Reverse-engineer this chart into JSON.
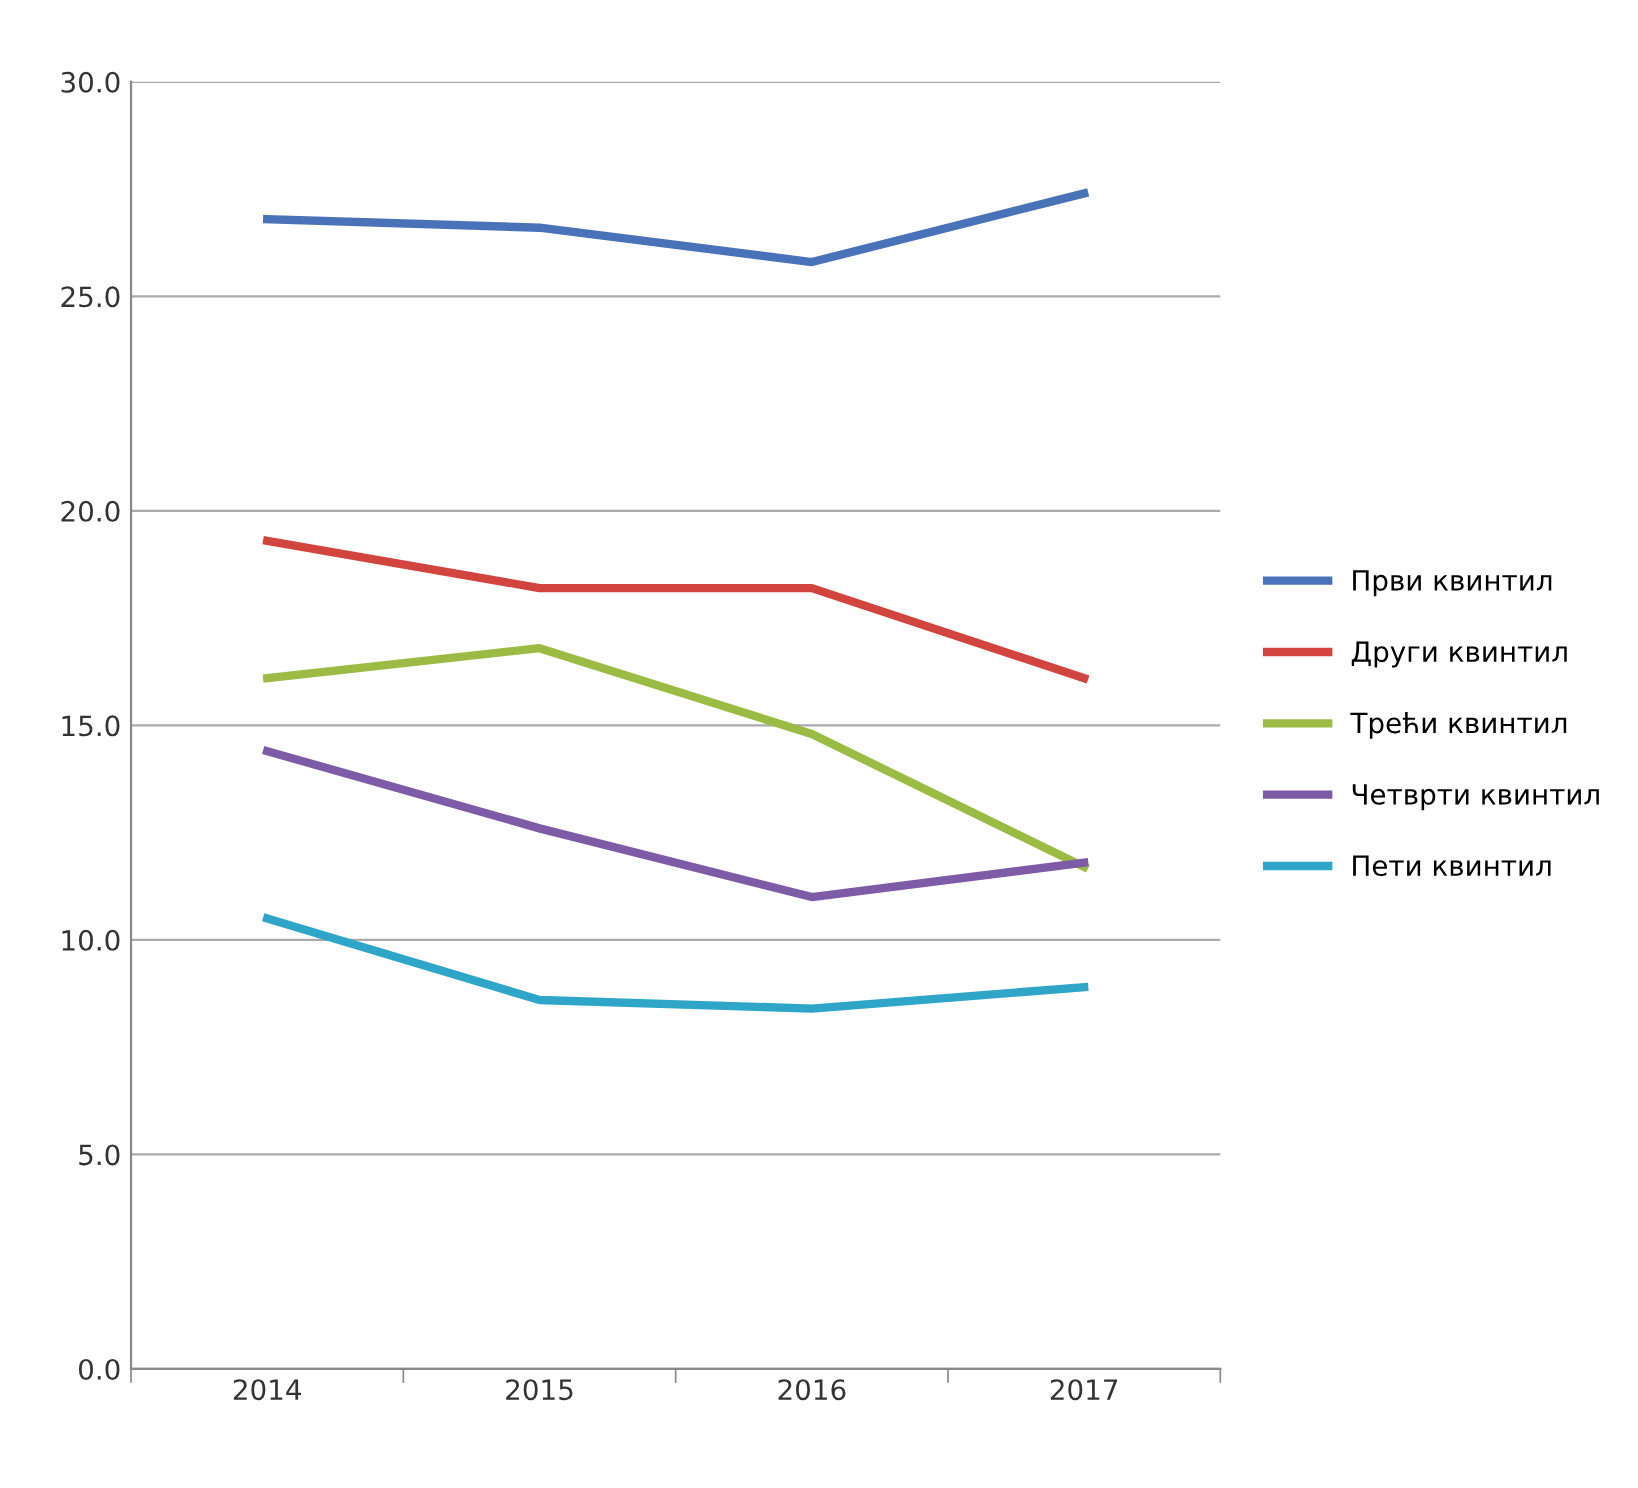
{
  "chart_data": {
    "type": "line",
    "categories": [
      "2014",
      "2015",
      "2016",
      "2017"
    ],
    "series": [
      {
        "name": "Први квинтил",
        "color": "#4a72b8",
        "values": [
          26.8,
          26.6,
          25.8,
          27.4
        ]
      },
      {
        "name": "Други квинтил",
        "color": "#d2453f",
        "values": [
          19.3,
          18.2,
          18.2,
          16.1
        ]
      },
      {
        "name": "Трећи квинтил",
        "color": "#9bbb45",
        "values": [
          16.1,
          16.8,
          14.8,
          11.7
        ]
      },
      {
        "name": "Четврти квинтил",
        "color": "#7d5ba6",
        "values": [
          14.4,
          12.6,
          11.0,
          11.8
        ]
      },
      {
        "name": "Пети квинтил",
        "color": "#2fa6c8",
        "values": [
          10.5,
          8.6,
          8.4,
          8.9
        ]
      }
    ],
    "ylim": [
      0,
      30
    ],
    "yticks": [
      {
        "value": 0,
        "label": "0.0"
      },
      {
        "value": 5,
        "label": "5.0"
      },
      {
        "value": 10,
        "label": "10.0"
      },
      {
        "value": 15,
        "label": "15.0"
      },
      {
        "value": 20,
        "label": "20.0"
      },
      {
        "value": 25,
        "label": "25.0"
      },
      {
        "value": 30,
        "label": "30.0"
      }
    ],
    "grid": "y",
    "legend": "right",
    "marker": "none",
    "line_style": "solid"
  }
}
